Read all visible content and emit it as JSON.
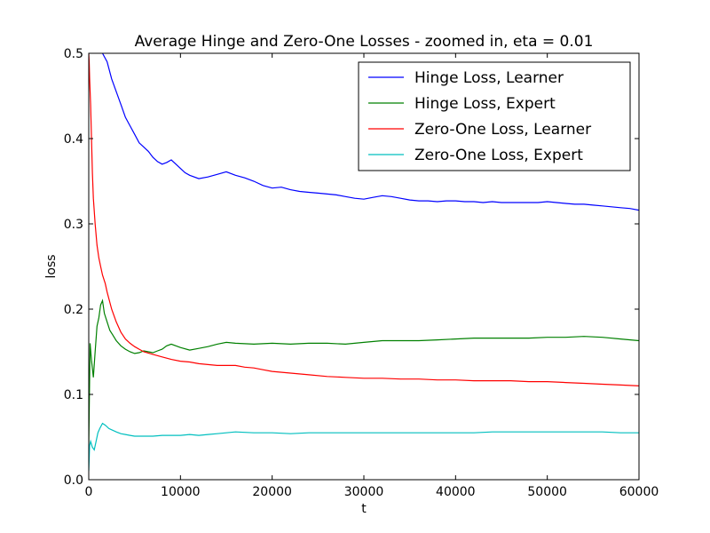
{
  "chart_data": {
    "type": "line",
    "title": "Average Hinge and Zero-One Losses - zoomed in, eta = 0.01",
    "xlabel": "t",
    "ylabel": "loss",
    "xlim": [
      0,
      60000
    ],
    "ylim": [
      0.0,
      0.5
    ],
    "xticks": [
      0,
      10000,
      20000,
      30000,
      40000,
      50000,
      60000
    ],
    "xtick_labels": [
      "0",
      "10000",
      "20000",
      "30000",
      "40000",
      "50000",
      "60000"
    ],
    "yticks": [
      0.0,
      0.1,
      0.2,
      0.3,
      0.4,
      0.5
    ],
    "ytick_labels": [
      "0.0",
      "0.1",
      "0.2",
      "0.3",
      "0.4",
      "0.5"
    ],
    "grid": false,
    "legend_position": "top-right",
    "series": [
      {
        "name": "Hinge Loss, Learner",
        "color": "#0000ff",
        "x": [
          1500,
          2000,
          2500,
          3000,
          3500,
          4000,
          4500,
          5000,
          5500,
          6000,
          6500,
          7000,
          7500,
          8000,
          8500,
          9000,
          9500,
          10000,
          10500,
          11000,
          12000,
          13000,
          14000,
          15000,
          16000,
          17000,
          18000,
          19000,
          20000,
          21000,
          22000,
          23000,
          24000,
          25000,
          26000,
          27000,
          28000,
          29000,
          30000,
          31000,
          32000,
          33000,
          34000,
          35000,
          36000,
          37000,
          38000,
          39000,
          40000,
          41000,
          42000,
          43000,
          44000,
          45000,
          46000,
          47000,
          48000,
          49000,
          50000,
          51000,
          52000,
          53000,
          54000,
          55000,
          56000,
          57000,
          58000,
          59000,
          60000
        ],
        "y": [
          0.5,
          0.49,
          0.47,
          0.455,
          0.44,
          0.425,
          0.415,
          0.405,
          0.395,
          0.39,
          0.385,
          0.378,
          0.373,
          0.37,
          0.372,
          0.375,
          0.37,
          0.365,
          0.36,
          0.357,
          0.353,
          0.355,
          0.358,
          0.361,
          0.357,
          0.354,
          0.35,
          0.345,
          0.342,
          0.343,
          0.34,
          0.338,
          0.337,
          0.336,
          0.335,
          0.334,
          0.332,
          0.33,
          0.329,
          0.331,
          0.333,
          0.332,
          0.33,
          0.328,
          0.327,
          0.327,
          0.326,
          0.327,
          0.327,
          0.326,
          0.326,
          0.325,
          0.326,
          0.325,
          0.325,
          0.325,
          0.325,
          0.325,
          0.326,
          0.325,
          0.324,
          0.323,
          0.323,
          0.322,
          0.321,
          0.32,
          0.319,
          0.318,
          0.316
        ]
      },
      {
        "name": "Hinge Loss, Expert",
        "color": "#008000",
        "x": [
          0,
          150,
          300,
          500,
          700,
          900,
          1100,
          1300,
          1500,
          1700,
          2000,
          2300,
          2600,
          3000,
          3500,
          4000,
          4500,
          5000,
          5500,
          6000,
          6500,
          7000,
          7500,
          8000,
          8500,
          9000,
          9500,
          10000,
          11000,
          12000,
          13000,
          14000,
          15000,
          16000,
          18000,
          20000,
          22000,
          24000,
          26000,
          28000,
          30000,
          32000,
          34000,
          36000,
          38000,
          40000,
          42000,
          44000,
          46000,
          48000,
          50000,
          52000,
          54000,
          56000,
          58000,
          60000
        ],
        "y": [
          0.04,
          0.16,
          0.14,
          0.12,
          0.15,
          0.18,
          0.19,
          0.205,
          0.21,
          0.195,
          0.185,
          0.175,
          0.17,
          0.163,
          0.157,
          0.153,
          0.15,
          0.148,
          0.149,
          0.151,
          0.15,
          0.149,
          0.151,
          0.153,
          0.157,
          0.159,
          0.157,
          0.155,
          0.152,
          0.154,
          0.156,
          0.159,
          0.161,
          0.16,
          0.159,
          0.16,
          0.159,
          0.16,
          0.16,
          0.159,
          0.161,
          0.163,
          0.163,
          0.163,
          0.164,
          0.165,
          0.166,
          0.166,
          0.166,
          0.166,
          0.167,
          0.167,
          0.168,
          0.167,
          0.165,
          0.163
        ]
      },
      {
        "name": "Zero-One Loss, Learner",
        "color": "#ff0000",
        "x": [
          0,
          50,
          100,
          200,
          300,
          400,
          500,
          700,
          900,
          1100,
          1300,
          1500,
          1800,
          2000,
          2500,
          3000,
          3500,
          4000,
          4500,
          5000,
          5500,
          6000,
          7000,
          8000,
          9000,
          10000,
          11000,
          12000,
          13000,
          14000,
          15000,
          16000,
          17000,
          18000,
          19000,
          20000,
          22000,
          24000,
          26000,
          28000,
          30000,
          32000,
          34000,
          36000,
          38000,
          40000,
          42000,
          44000,
          46000,
          48000,
          50000,
          52000,
          54000,
          56000,
          58000,
          60000
        ],
        "y": [
          0.5,
          0.49,
          0.47,
          0.44,
          0.4,
          0.36,
          0.33,
          0.3,
          0.275,
          0.26,
          0.25,
          0.24,
          0.23,
          0.22,
          0.2,
          0.185,
          0.173,
          0.165,
          0.16,
          0.156,
          0.153,
          0.15,
          0.147,
          0.144,
          0.141,
          0.139,
          0.138,
          0.136,
          0.135,
          0.134,
          0.134,
          0.134,
          0.132,
          0.131,
          0.129,
          0.127,
          0.125,
          0.123,
          0.121,
          0.12,
          0.119,
          0.119,
          0.118,
          0.118,
          0.117,
          0.117,
          0.116,
          0.116,
          0.116,
          0.115,
          0.115,
          0.114,
          0.113,
          0.112,
          0.111,
          0.11
        ]
      },
      {
        "name": "Zero-One Loss, Expert",
        "color": "#00bfbf",
        "x": [
          0,
          100,
          200,
          400,
          600,
          800,
          1000,
          1200,
          1500,
          1800,
          2200,
          2600,
          3000,
          3500,
          4000,
          4500,
          5000,
          6000,
          7000,
          8000,
          9000,
          10000,
          11000,
          12000,
          13000,
          14000,
          15000,
          16000,
          18000,
          20000,
          22000,
          24000,
          26000,
          28000,
          30000,
          32000,
          34000,
          36000,
          38000,
          40000,
          42000,
          44000,
          46000,
          48000,
          50000,
          52000,
          54000,
          56000,
          58000,
          60000
        ],
        "y": [
          0.01,
          0.04,
          0.045,
          0.038,
          0.035,
          0.045,
          0.055,
          0.06,
          0.066,
          0.064,
          0.06,
          0.058,
          0.056,
          0.054,
          0.053,
          0.052,
          0.051,
          0.051,
          0.051,
          0.052,
          0.052,
          0.052,
          0.053,
          0.052,
          0.053,
          0.054,
          0.055,
          0.056,
          0.055,
          0.055,
          0.054,
          0.055,
          0.055,
          0.055,
          0.055,
          0.055,
          0.055,
          0.055,
          0.055,
          0.055,
          0.055,
          0.056,
          0.056,
          0.056,
          0.056,
          0.056,
          0.056,
          0.056,
          0.055,
          0.055
        ]
      }
    ]
  }
}
